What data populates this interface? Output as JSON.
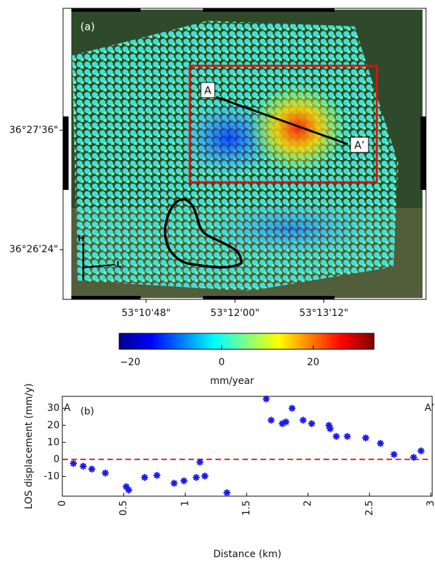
{
  "chart_data": [
    {
      "type": "map",
      "panel_label": "(a)",
      "xlim": [
        53.1632,
        53.2422
      ],
      "ylim": [
        36.4319,
        36.4802
      ],
      "xticks": [
        {
          "value": 53.18,
          "label": "53°10'48\""
        },
        {
          "value": 53.2,
          "label": "53°12'00\""
        },
        {
          "value": 53.22,
          "label": "53°13'12\""
        }
      ],
      "yticks": [
        {
          "value": 36.46,
          "label": "36°27'36\""
        },
        {
          "value": 36.44,
          "label": "36°26'24\""
        }
      ],
      "profile_start": "A",
      "profile_end": "A’",
      "compass": {
        "up": "H",
        "right": "L"
      },
      "colorbar": {
        "clim": [
          -22.4,
          33.3
        ],
        "ticks": [
          {
            "value": -20,
            "label": "−20"
          },
          0,
          20
        ],
        "label": "mm/year",
        "colors": [
          "#00008f",
          "#0000ff",
          "#0080ff",
          "#00ffff",
          "#80ff80",
          "#ffff00",
          "#ff8000",
          "#ff0000",
          "#800000"
        ]
      }
    },
    {
      "type": "scatter",
      "panel_label": "(b)",
      "start_label": "A",
      "end_label": "A’",
      "xlabel": "Distance (km)",
      "ylabel": "LOS displacement (mm/y)",
      "xlim": [
        0,
        3
      ],
      "ylim": [
        -21.6,
        37
      ],
      "xticks": [
        0,
        0.5,
        1,
        1.5,
        2,
        2.5,
        3
      ],
      "yticks": [
        -10,
        0,
        10,
        20,
        30
      ],
      "reference_line": 0,
      "reference_color": "#e52222",
      "series": [
        {
          "color": "#1a1aee",
          "x": [
            0.09,
            0.17,
            0.24,
            0.35,
            0.52,
            0.54,
            0.67,
            0.77,
            0.91,
            0.99,
            1.09,
            1.12,
            1.16,
            1.34,
            1.66,
            1.7,
            1.79,
            1.82,
            1.87,
            1.96,
            2.03,
            2.17,
            2.18,
            2.23,
            2.32,
            2.47,
            2.59,
            2.7,
            2.86,
            2.92
          ],
          "values": [
            -2.4,
            -4,
            -5.7,
            -8,
            -16,
            -18,
            -10.6,
            -9.4,
            -14,
            -12.6,
            -10.6,
            -1.6,
            -9.8,
            -19.6,
            35.5,
            23,
            21,
            22,
            30,
            23,
            21,
            20,
            18,
            13.5,
            13.5,
            12.6,
            9.4,
            2.9,
            1.2,
            5
          ]
        }
      ]
    }
  ]
}
